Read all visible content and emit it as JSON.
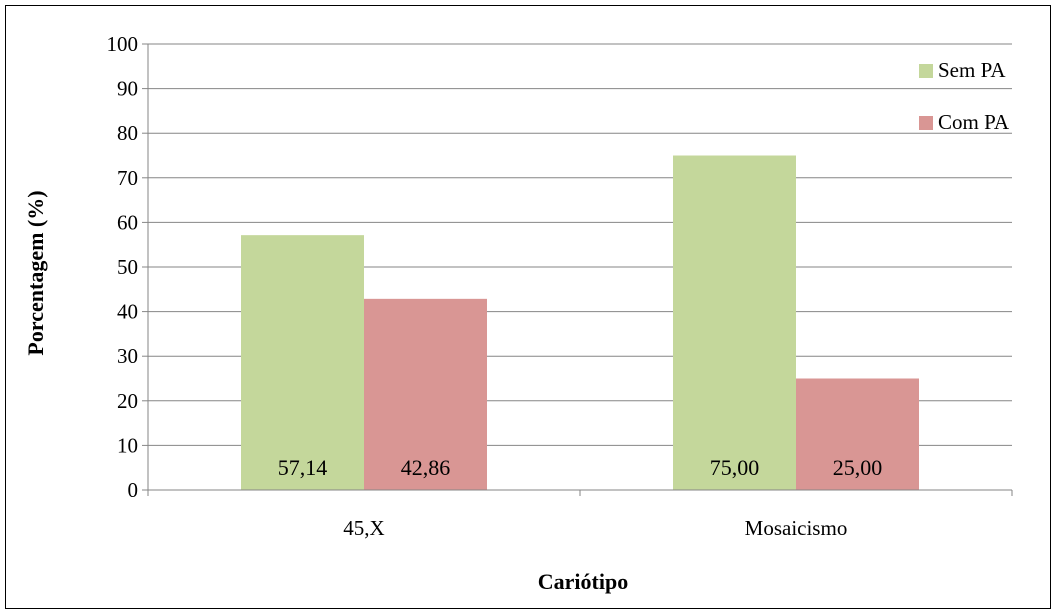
{
  "chart_data": {
    "type": "bar",
    "categories": [
      "45,X",
      "Mosaicismo"
    ],
    "series": [
      {
        "name": "Sem PA",
        "values": [
          57.14,
          75.0
        ],
        "labels": [
          "57,14",
          "75,00"
        ],
        "color": "#c4d79b"
      },
      {
        "name": "Com PA",
        "values": [
          42.86,
          25.0
        ],
        "labels": [
          "42,86",
          "25,00"
        ],
        "color": "#d99694"
      }
    ],
    "xlabel": "Cariótipo",
    "ylabel": "Porcentagem (%)",
    "ylim": [
      0,
      100
    ],
    "yticks": [
      0,
      10,
      20,
      30,
      40,
      50,
      60,
      70,
      80,
      90,
      100
    ],
    "grid": true,
    "legend_position": "top-right",
    "gridline_color": "#868686"
  }
}
